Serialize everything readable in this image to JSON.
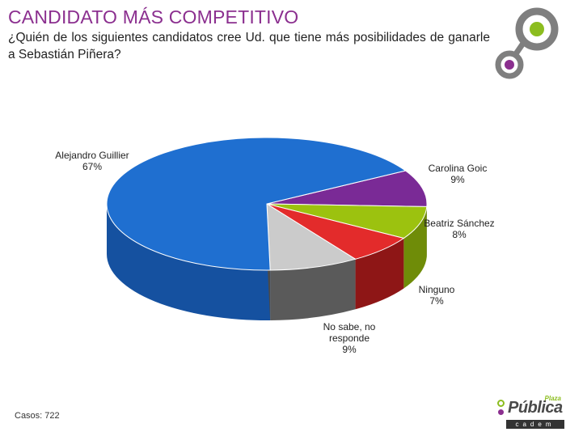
{
  "header": {
    "title": "CANDIDATO MÁS COMPETITIVO",
    "question": "¿Quién de los siguientes candidatos cree Ud. que tiene más posibilidades de ganarle a Sebastián Piñera?"
  },
  "footer": {
    "cases": "Casos: 722",
    "brand_name": "Pública",
    "brand_tag": "Plaza",
    "brand_sub": "cadem"
  },
  "colors": {
    "title": "#8b2f8f",
    "accent_purple": "#8b2f8f",
    "accent_green": "#8cbd1f",
    "deco_gray": "#7f7f7f"
  },
  "chart_data": {
    "type": "pie",
    "style": "3d",
    "slices": [
      {
        "label": "Alejandro Guillier",
        "value_label": "67%",
        "value": 67,
        "color": "#1f6fd0",
        "side": "#1551a0"
      },
      {
        "label": "Carolina Goic",
        "value_label": "9%",
        "value": 9,
        "color": "#7a2a96",
        "side": "#55186b"
      },
      {
        "label": "Beatriz Sánchez",
        "value_label": "8%",
        "value": 8,
        "color": "#9cc20f",
        "side": "#6f8c08"
      },
      {
        "label": "Ninguno",
        "value_label": "7%",
        "value": 7,
        "color": "#e32b2b",
        "side": "#8e1616"
      },
      {
        "label": "No sabe, no responde",
        "value_label": "9%",
        "value": 9,
        "color": "#cbcbcb",
        "side": "#5a5a5a"
      }
    ]
  }
}
